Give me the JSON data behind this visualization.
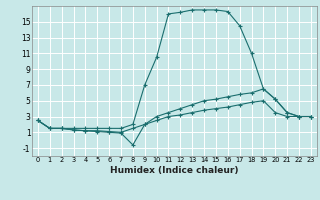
{
  "xlabel": "Humidex (Indice chaleur)",
  "xlim": [
    -0.5,
    23.5
  ],
  "ylim": [
    -2.0,
    17.0
  ],
  "xticks": [
    0,
    1,
    2,
    3,
    4,
    5,
    6,
    7,
    8,
    9,
    10,
    11,
    12,
    13,
    14,
    15,
    16,
    17,
    18,
    19,
    20,
    21,
    22,
    23
  ],
  "yticks": [
    -1,
    1,
    3,
    5,
    7,
    9,
    11,
    13,
    15
  ],
  "bg_color": "#c8e8e8",
  "grid_color": "#ffffff",
  "line_color": "#1a6e6e",
  "line1_x": [
    0,
    1,
    2,
    3,
    4,
    5,
    6,
    7,
    8,
    9,
    10,
    11,
    12,
    13,
    14,
    15,
    16,
    17,
    18,
    19,
    20,
    21,
    22,
    23
  ],
  "line1_y": [
    2.5,
    1.5,
    1.5,
    1.5,
    1.5,
    1.5,
    1.5,
    1.5,
    2.0,
    7.0,
    10.5,
    16.0,
    16.2,
    16.5,
    16.5,
    16.5,
    16.3,
    14.5,
    11.0,
    6.5,
    5.2,
    3.5,
    3.0,
    3.0
  ],
  "line2_x": [
    0,
    1,
    2,
    3,
    4,
    5,
    6,
    7,
    8,
    9,
    10,
    11,
    12,
    13,
    14,
    15,
    16,
    17,
    18,
    19,
    20,
    21,
    22,
    23
  ],
  "line2_y": [
    2.5,
    1.5,
    1.5,
    1.3,
    1.2,
    1.1,
    1.0,
    0.9,
    -0.6,
    2.0,
    3.0,
    3.5,
    4.0,
    4.5,
    5.0,
    5.2,
    5.5,
    5.8,
    6.0,
    6.5,
    5.2,
    3.5,
    3.0,
    3.0
  ],
  "line3_x": [
    0,
    1,
    2,
    3,
    4,
    5,
    6,
    7,
    8,
    9,
    10,
    11,
    12,
    13,
    14,
    15,
    16,
    17,
    18,
    19,
    20,
    21,
    22,
    23
  ],
  "line3_y": [
    2.5,
    1.5,
    1.5,
    1.3,
    1.2,
    1.2,
    1.1,
    1.0,
    1.5,
    2.0,
    2.5,
    3.0,
    3.2,
    3.5,
    3.8,
    4.0,
    4.2,
    4.5,
    4.8,
    5.0,
    3.5,
    3.0,
    3.0,
    3.0
  ]
}
